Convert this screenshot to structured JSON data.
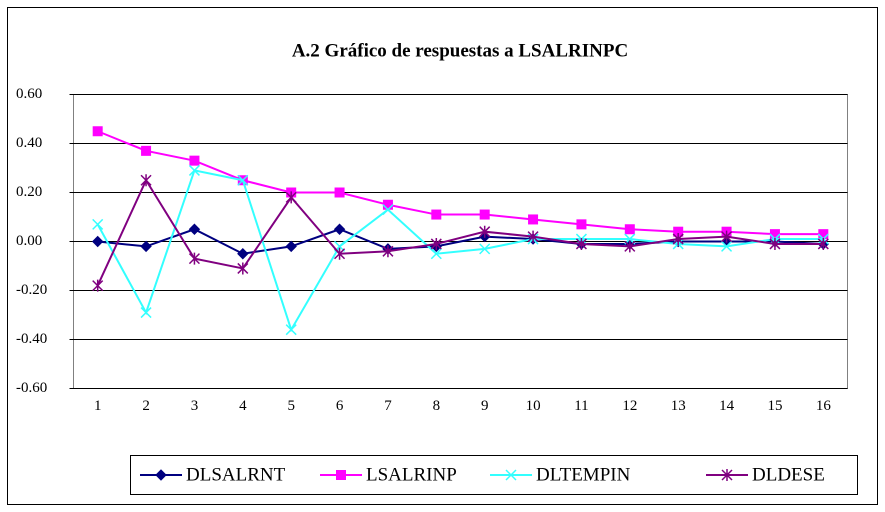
{
  "chart_data": {
    "type": "line",
    "title": "A.2 Gráfico de respuestas a LSALRINPC",
    "categories": [
      1,
      2,
      3,
      4,
      5,
      6,
      7,
      8,
      9,
      10,
      11,
      12,
      13,
      14,
      15,
      16
    ],
    "series": [
      {
        "name": "DLSALRNT",
        "color": "#000080",
        "marker": "diamond",
        "values": [
          0.0,
          -0.02,
          0.05,
          -0.05,
          -0.02,
          0.05,
          -0.03,
          -0.02,
          0.02,
          0.01,
          -0.01,
          -0.01,
          0.0,
          0.0,
          0.0,
          -0.01
        ]
      },
      {
        "name": "LSALRINP",
        "color": "#ff00ff",
        "marker": "square",
        "values": [
          0.45,
          0.37,
          0.33,
          0.25,
          0.2,
          0.2,
          0.15,
          0.11,
          0.11,
          0.09,
          0.07,
          0.05,
          0.04,
          0.04,
          0.03,
          0.03
        ]
      },
      {
        "name": "DLTEMPIN",
        "color": "#33ffff",
        "marker": "x",
        "values": [
          0.07,
          -0.29,
          0.29,
          0.25,
          -0.36,
          -0.02,
          0.13,
          -0.05,
          -0.03,
          0.01,
          0.01,
          0.01,
          -0.01,
          -0.02,
          0.01,
          0.01
        ]
      },
      {
        "name": "DLDESE",
        "color": "#800080",
        "marker": "star",
        "values": [
          -0.18,
          0.25,
          -0.07,
          -0.11,
          0.18,
          -0.05,
          -0.04,
          -0.01,
          0.04,
          0.02,
          -0.01,
          -0.02,
          0.01,
          0.02,
          -0.01,
          -0.01
        ]
      }
    ],
    "ylim": [
      -0.6,
      0.6
    ],
    "yticks": [
      {
        "value": 0.6,
        "label": "0.60"
      },
      {
        "value": 0.4,
        "label": "0.40"
      },
      {
        "value": 0.2,
        "label": "0.20"
      },
      {
        "value": 0,
        "label": "0.00"
      },
      {
        "value": -0.2,
        "label": "-0.20"
      },
      {
        "value": -0.4,
        "label": "-0.40"
      },
      {
        "value": -0.6,
        "label": "-0.60"
      }
    ],
    "grid": true,
    "legend": "bottom"
  }
}
